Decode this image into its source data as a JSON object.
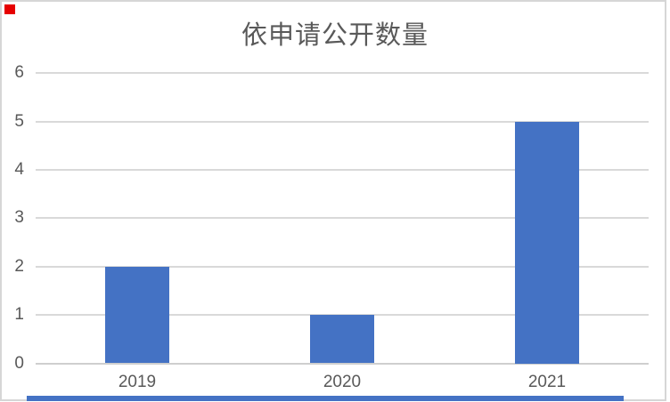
{
  "chart_data": {
    "type": "bar",
    "title": "依申请公开数量",
    "categories": [
      "2019",
      "2020",
      "2021"
    ],
    "values": [
      2,
      1,
      5
    ],
    "xlabel": "",
    "ylabel": "",
    "ylim": [
      0,
      6
    ],
    "ytick_step": 1,
    "yticks": [
      "0",
      "1",
      "2",
      "3",
      "4",
      "5",
      "6"
    ],
    "grid": true,
    "legend": false
  },
  "colors": {
    "bar": "#4472c4",
    "gridline": "#d9d9d9",
    "axis_line": "#cfcfcf",
    "text": "#595959",
    "frame": "#d6d6d6",
    "corner_marker": "#e60000",
    "bottom_strip": "#4472c4"
  },
  "artifacts": {
    "corner_marker": "red-square",
    "bottom_strip": "blue-strip-cut-off-element"
  }
}
